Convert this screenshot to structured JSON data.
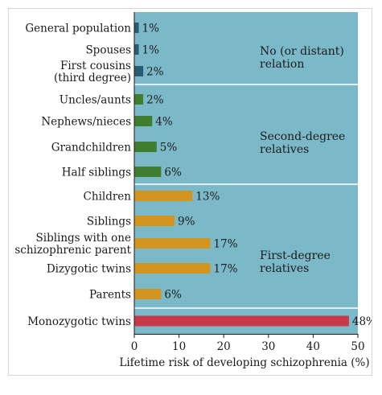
{
  "chart_data": {
    "type": "bar",
    "orientation": "horizontal",
    "xlabel": "Lifetime risk of developing schizophrenia (%)",
    "xlim": [
      0,
      50
    ],
    "xticks": [
      0,
      10,
      20,
      30,
      40,
      50
    ],
    "value_suffix": "%",
    "colors": {
      "panel": "#7bb9c9",
      "separator": "#ffffff",
      "none": "#2c5a73",
      "second": "#3f7d2f",
      "first": "#d3951f",
      "twin": "#c8394a"
    },
    "groups": [
      {
        "label": [
          "No (or distant)",
          "relation"
        ],
        "color": "#2c5a73"
      },
      {
        "label": [
          "Second-degree",
          "relatives"
        ],
        "color": "#3f7d2f"
      },
      {
        "label": [
          "First-degree",
          "relatives"
        ],
        "color": "#d3951f"
      },
      {
        "label": [],
        "color": "#c8394a"
      }
    ],
    "bars": [
      {
        "category": [
          "General population"
        ],
        "value": 1,
        "group": 0
      },
      {
        "category": [
          "Spouses"
        ],
        "value": 1,
        "group": 0
      },
      {
        "category": [
          "First cousins",
          "(third degree)"
        ],
        "value": 2,
        "group": 0
      },
      {
        "category": [
          "Uncles/aunts"
        ],
        "value": 2,
        "group": 1
      },
      {
        "category": [
          "Nephews/nieces"
        ],
        "value": 4,
        "group": 1
      },
      {
        "category": [
          "Grandchildren"
        ],
        "value": 5,
        "group": 1
      },
      {
        "category": [
          "Half siblings"
        ],
        "value": 6,
        "group": 1
      },
      {
        "category": [
          "Children"
        ],
        "value": 13,
        "group": 2
      },
      {
        "category": [
          "Siblings"
        ],
        "value": 9,
        "group": 2
      },
      {
        "category": [
          "Siblings with one",
          "schizophrenic parent"
        ],
        "value": 17,
        "group": 2
      },
      {
        "category": [
          "Dizygotic twins"
        ],
        "value": 17,
        "group": 2
      },
      {
        "category": [
          "Parents"
        ],
        "value": 6,
        "group": 2
      },
      {
        "category": [
          "Monozygotic twins"
        ],
        "value": 48,
        "group": 3
      }
    ]
  }
}
